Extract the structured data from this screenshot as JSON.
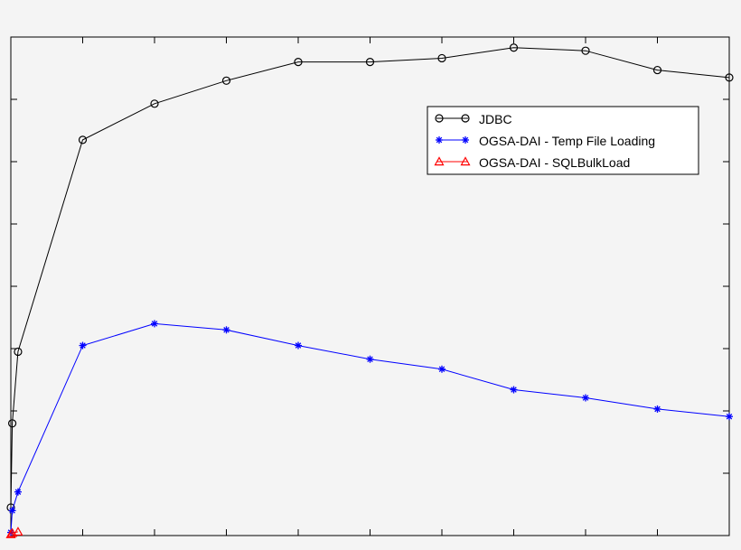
{
  "chart_data": {
    "type": "line",
    "title": "",
    "xlabel": "",
    "ylabel": "",
    "xlim": [
      0,
      1000
    ],
    "ylim": [
      0,
      800
    ],
    "grid": false,
    "legend_position": "top-right",
    "series": [
      {
        "name": "JDBC",
        "color": "#000000",
        "marker": "circle",
        "x": [
          0,
          2,
          10,
          100,
          200,
          300,
          400,
          500,
          600,
          700,
          800,
          900,
          1000
        ],
        "y": [
          45,
          180,
          295,
          635,
          693,
          730,
          760,
          760,
          766,
          783,
          778,
          747,
          735
        ]
      },
      {
        "name": "OGSA-DAI - Temp File Loading",
        "color": "#0000ff",
        "marker": "asterisk",
        "x": [
          0,
          2,
          10,
          100,
          200,
          300,
          400,
          500,
          600,
          700,
          800,
          900,
          1000
        ],
        "y": [
          5,
          40,
          70,
          305,
          340,
          330,
          305,
          283,
          267,
          234,
          221,
          203,
          191
        ]
      },
      {
        "name": "OGSA-DAI - SQLBulkLoad",
        "color": "#ff0000",
        "marker": "triangle",
        "x": [
          0,
          2,
          10
        ],
        "y": [
          2,
          4,
          6
        ]
      }
    ]
  }
}
